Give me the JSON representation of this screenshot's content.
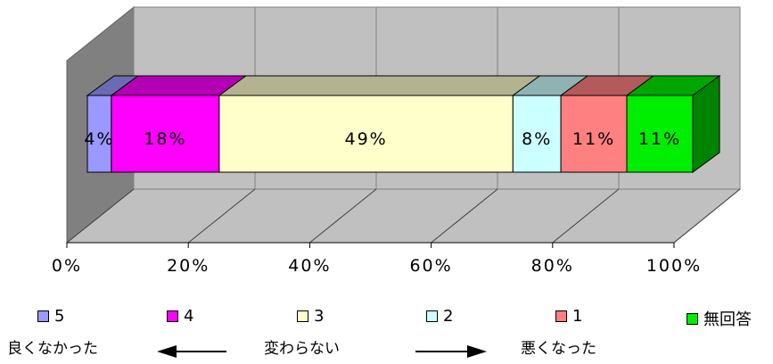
{
  "chart_data": {
    "type": "bar",
    "orientation": "horizontal-stacked-100",
    "series": [
      {
        "name": "5",
        "value": 4,
        "label": "4%",
        "color": "#9999ff"
      },
      {
        "name": "4",
        "value": 18,
        "label": "18%",
        "color": "#ff00ff"
      },
      {
        "name": "3",
        "value": 49,
        "label": "49%",
        "color": "#ffffcc"
      },
      {
        "name": "2",
        "value": 8,
        "label": "8%",
        "color": "#ccffff"
      },
      {
        "name": "1",
        "value": 11,
        "label": "11%",
        "color": "#ff8080"
      },
      {
        "name": "無回答",
        "value": 11,
        "label": "11%",
        "color": "#00ee00"
      }
    ],
    "x_ticks": [
      "0%",
      "20%",
      "40%",
      "60%",
      "80%",
      "100%"
    ],
    "xlim": [
      0,
      100
    ],
    "grid": true,
    "legend_position": "bottom"
  },
  "captions": {
    "left": "良くなかった",
    "center": "変わらない",
    "right": "悪くなった"
  }
}
